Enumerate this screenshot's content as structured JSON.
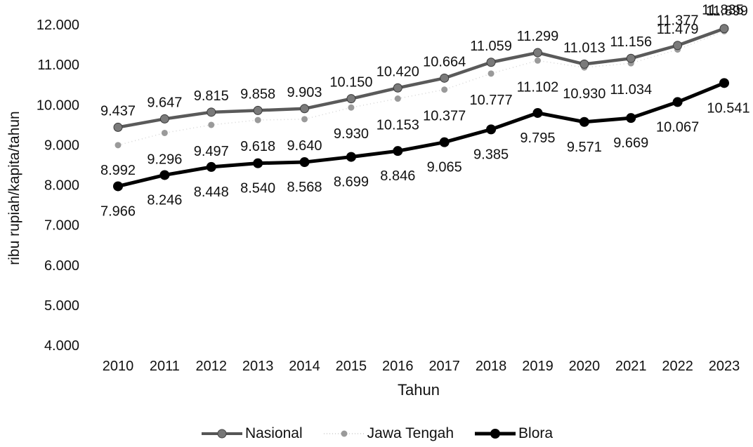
{
  "chart_data": {
    "type": "line",
    "xlabel": "Tahun",
    "ylabel": "ribu rupiah/kapita/tahun",
    "categories": [
      "2010",
      "2011",
      "2012",
      "2013",
      "2014",
      "2015",
      "2016",
      "2017",
      "2018",
      "2019",
      "2020",
      "2021",
      "2022",
      "2023"
    ],
    "ylim": [
      4000,
      12000
    ],
    "yticks": [
      "4.000",
      "5.000",
      "6.000",
      "7.000",
      "8.000",
      "9.000",
      "10.000",
      "11.000",
      "12.000"
    ],
    "ytick_values": [
      4000,
      5000,
      6000,
      7000,
      8000,
      9000,
      10000,
      11000,
      12000
    ],
    "grid": false,
    "legend_position": "bottom",
    "series": [
      {
        "name": "Nasional",
        "color": "#555555",
        "values": [
          9437,
          9647,
          9815,
          9858,
          9903,
          10150,
          10420,
          10664,
          11059,
          11299,
          11013,
          11156,
          11479,
          11899
        ],
        "labels": [
          "9.437",
          "9.647",
          "9.815",
          "9.858",
          "9.903",
          "10.150",
          "10.420",
          "10.664",
          "11.059",
          "11.299",
          "11.013",
          "11.156",
          "11.479",
          "11.899"
        ]
      },
      {
        "name": "Jawa Tengah",
        "color": "#8a8a8a",
        "values": [
          8992,
          9296,
          9497,
          9618,
          9640,
          9930,
          10153,
          10377,
          10777,
          11102,
          10930,
          11034,
          11377,
          11835
        ],
        "labels": [
          "8.992",
          "9.296",
          "9.497",
          "9.618",
          "9.640",
          "9.930",
          "10.153",
          "10.377",
          "10.777",
          "11.102",
          "10.930",
          "11.034",
          "11.377",
          "11.835"
        ]
      },
      {
        "name": "Blora",
        "color": "#000000",
        "values": [
          7966,
          8246,
          8448,
          8540,
          8568,
          8699,
          8846,
          9065,
          9385,
          9795,
          9571,
          9669,
          10067,
          10541
        ],
        "labels": [
          "7.966",
          "8.246",
          "8.448",
          "8.540",
          "8.568",
          "8.699",
          "8.846",
          "9.065",
          "9.385",
          "9.795",
          "9.571",
          "9.669",
          "10.067",
          "10.541"
        ]
      }
    ]
  }
}
